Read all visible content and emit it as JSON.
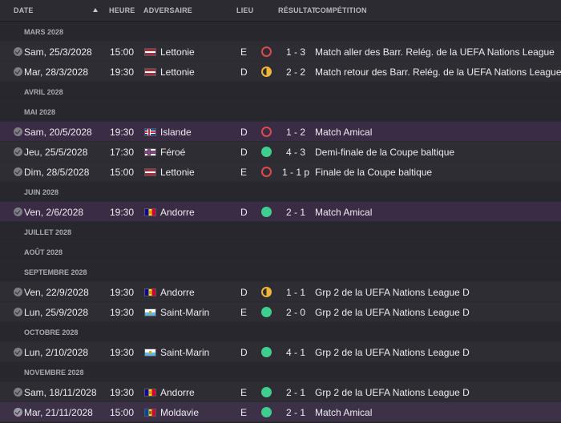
{
  "headers": {
    "date": "DATE",
    "heure": "HEURE",
    "adversaire": "ADVERSAIRE",
    "lieu": "LIEU",
    "resultat": "RÉSULTAT",
    "competition": "COMPÉTITION"
  },
  "colors": {
    "win": "#3ecf8e",
    "loss": "#e04a4a",
    "draw": "#f0b43a",
    "highlight": "#3a2c44"
  },
  "rows": [
    {
      "type": "month",
      "label": "MARS 2028"
    },
    {
      "type": "match",
      "date": "Sam, 25/3/2028",
      "time": "15:00",
      "flag": "flag-latvia",
      "opponent": "Lettonie",
      "venue": "E",
      "result_type": "loss",
      "score": "1 - 3",
      "competition": "Match aller des Barr. Relég. de la UEFA Nations League"
    },
    {
      "type": "match",
      "date": "Mar, 28/3/2028",
      "time": "19:30",
      "flag": "flag-latvia",
      "opponent": "Lettonie",
      "venue": "D",
      "result_type": "draw",
      "score": "2 - 2",
      "competition": "Match retour des Barr. Relég. de la UEFA Nations League"
    },
    {
      "type": "month",
      "label": "AVRIL 2028"
    },
    {
      "type": "month",
      "label": "MAI 2028"
    },
    {
      "type": "match",
      "date": "Sam, 20/5/2028",
      "time": "19:30",
      "flag": "flag-iceland",
      "opponent": "Islande",
      "venue": "D",
      "result_type": "loss",
      "score": "1 - 2",
      "competition": "Match Amical",
      "highlight": true
    },
    {
      "type": "match",
      "date": "Jeu, 25/5/2028",
      "time": "17:30",
      "flag": "flag-faroe",
      "opponent": "Féroé",
      "venue": "D",
      "result_type": "win",
      "score": "4 - 3",
      "competition": "Demi-finale de la Coupe baltique"
    },
    {
      "type": "match",
      "date": "Dim, 28/5/2028",
      "time": "15:00",
      "flag": "flag-latvia",
      "opponent": "Lettonie",
      "venue": "E",
      "result_type": "loss",
      "score": "1 - 1 p",
      "competition": "Finale de la Coupe baltique"
    },
    {
      "type": "month",
      "label": "JUIN 2028"
    },
    {
      "type": "match",
      "date": "Ven, 2/6/2028",
      "time": "19:30",
      "flag": "flag-andorra",
      "opponent": "Andorre",
      "venue": "D",
      "result_type": "win",
      "score": "2 - 1",
      "competition": "Match Amical",
      "highlight": true
    },
    {
      "type": "month",
      "label": "JUILLET 2028"
    },
    {
      "type": "month",
      "label": "AOÛT 2028"
    },
    {
      "type": "month",
      "label": "SEPTEMBRE 2028"
    },
    {
      "type": "match",
      "date": "Ven, 22/9/2028",
      "time": "19:30",
      "flag": "flag-andorra",
      "opponent": "Andorre",
      "venue": "D",
      "result_type": "draw",
      "score": "1 - 1",
      "competition": "Grp 2 de la UEFA Nations League D"
    },
    {
      "type": "match",
      "date": "Lun, 25/9/2028",
      "time": "19:30",
      "flag": "flag-sanmarino",
      "opponent": "Saint-Marin",
      "venue": "E",
      "result_type": "win",
      "score": "2 - 0",
      "competition": "Grp 2 de la UEFA Nations League D"
    },
    {
      "type": "month",
      "label": "OCTOBRE 2028"
    },
    {
      "type": "match",
      "date": "Lun, 2/10/2028",
      "time": "19:30",
      "flag": "flag-sanmarino",
      "opponent": "Saint-Marin",
      "venue": "D",
      "result_type": "win",
      "score": "4 - 1",
      "competition": "Grp 2 de la UEFA Nations League D"
    },
    {
      "type": "month",
      "label": "NOVEMBRE 2028"
    },
    {
      "type": "match",
      "date": "Sam, 18/11/2028",
      "time": "19:30",
      "flag": "flag-andorra",
      "opponent": "Andorre",
      "venue": "E",
      "result_type": "win",
      "score": "2 - 1",
      "competition": "Grp 2 de la UEFA Nations League D"
    },
    {
      "type": "match",
      "date": "Mar, 21/11/2028",
      "time": "15:00",
      "flag": "flag-moldova",
      "opponent": "Moldavie",
      "venue": "E",
      "result_type": "win",
      "score": "2 - 1",
      "competition": "Match Amical",
      "highlight": true,
      "checked": true
    }
  ]
}
